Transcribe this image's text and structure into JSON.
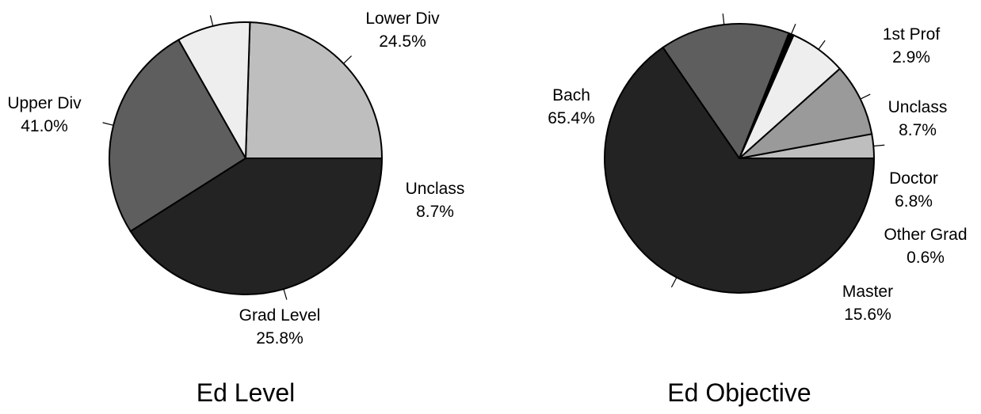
{
  "chart_data": [
    {
      "type": "pie",
      "title": "Ed Level",
      "slices": [
        {
          "label": "Lower Div",
          "percent_text": "24.5%",
          "value": 24.5,
          "color": "#bebebe"
        },
        {
          "label": "Unclass",
          "percent_text": "8.7%",
          "value": 8.7,
          "color": "#eeeeee"
        },
        {
          "label": "Grad Level",
          "percent_text": "25.8%",
          "value": 25.8,
          "color": "#5e5e5e"
        },
        {
          "label": "Upper Div",
          "percent_text": "41.0%",
          "value": 41.0,
          "color": "#232323"
        }
      ],
      "legend": "none",
      "label_placement": "outside-with-leader-lines"
    },
    {
      "type": "pie",
      "title": "Ed Objective",
      "slices": [
        {
          "label": "1st Prof",
          "percent_text": "2.9%",
          "value": 2.9,
          "color": "#bebebe"
        },
        {
          "label": "Unclass",
          "percent_text": "8.7%",
          "value": 8.7,
          "color": "#9a9a9a"
        },
        {
          "label": "Doctor",
          "percent_text": "6.8%",
          "value": 6.8,
          "color": "#eeeeee"
        },
        {
          "label": "Other Grad",
          "percent_text": "0.6%",
          "value": 0.6,
          "color": "#000000"
        },
        {
          "label": "Master",
          "percent_text": "15.6%",
          "value": 15.6,
          "color": "#5e5e5e"
        },
        {
          "label": "Bach",
          "percent_text": "65.4%",
          "value": 65.4,
          "color": "#232323"
        }
      ],
      "legend": "none",
      "label_placement": "outside-with-leader-lines"
    }
  ]
}
